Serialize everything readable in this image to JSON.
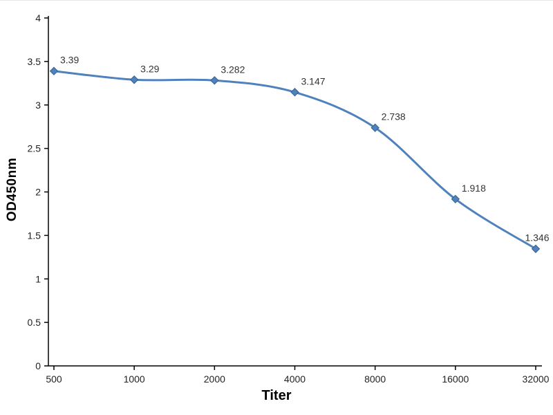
{
  "chart_data": {
    "type": "line",
    "title": "",
    "xlabel": "Titer",
    "ylabel": "OD450nm",
    "categories": [
      "500",
      "1000",
      "2000",
      "4000",
      "8000",
      "16000",
      "32000"
    ],
    "series": [
      {
        "name": "OD450nm",
        "values": [
          3.39,
          3.29,
          3.282,
          3.147,
          2.738,
          1.918,
          1.346
        ],
        "point_labels": [
          "3.39",
          "3.29",
          "3.282",
          "3.147",
          "2.738",
          "1.918",
          "1.346"
        ]
      }
    ],
    "ylim": [
      0,
      4
    ],
    "ytick_step": 0.5,
    "ytick_labels": [
      "0",
      "0.5",
      "1",
      "1.5",
      "2",
      "2.5",
      "3",
      "3.5",
      "4"
    ],
    "grid": false,
    "legend_position": "none",
    "line_color": "#4f81bd",
    "marker": "diamond",
    "marker_color": "#4f81bd",
    "marker_stroke": "#35618f",
    "axis_color": "#000000",
    "tick_label_color": "#222222",
    "data_label_color": "#333333"
  }
}
